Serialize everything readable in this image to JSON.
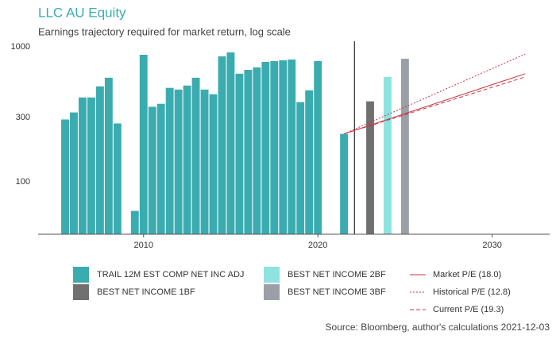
{
  "chart_data": {
    "type": "bar",
    "title": "LLC AU Equity",
    "subtitle": "Earnings trajectory required for market return, log scale",
    "source": "Source: Bloomberg, author's calculations 2021-12-03",
    "log_y": true,
    "xlim": [
      2003.95,
      2033.3
    ],
    "ylim": [
      41,
      1100
    ],
    "xticks": [
      2010,
      2020,
      2030
    ],
    "yticks": [
      100,
      300,
      1000
    ],
    "vline": 2022.1,
    "series": [
      {
        "name": "TRAIL 12M EST COMP NET INC ADJ",
        "color": "#3aacb0",
        "type": "bar",
        "x": [
          2005.5,
          2006,
          2006.5,
          2007,
          2007.5,
          2008,
          2008.5,
          2009.5,
          2010,
          2010.5,
          2011,
          2011.5,
          2012,
          2012.5,
          2013,
          2013.5,
          2014,
          2014.5,
          2015,
          2015.5,
          2016,
          2016.5,
          2017,
          2017.5,
          2018,
          2018.5,
          2019,
          2019.5,
          2020,
          2021.5
        ],
        "values": [
          290,
          327,
          422,
          422,
          510,
          591,
          271,
          61,
          874,
          360,
          379,
          497,
          483,
          517,
          591,
          483,
          446,
          851,
          910,
          633,
          676,
          705,
          774,
          785,
          796,
          806,
          390,
          477,
          785,
          227
        ]
      },
      {
        "name": "BEST NET INCOME 1BF",
        "color": "#707070",
        "type": "bar",
        "x": [
          2023
        ],
        "values": [
          395
        ]
      },
      {
        "name": "BEST NET INCOME 2BF",
        "color": "#8de3e0",
        "type": "bar",
        "x": [
          2024
        ],
        "values": [
          599
        ]
      },
      {
        "name": "BEST NET INCOME 3BF",
        "color": "#9aa0a6",
        "type": "bar",
        "x": [
          2025
        ],
        "values": [
          817
        ]
      },
      {
        "name": "Market P/E (18.0)",
        "color": "#cc3344",
        "type": "line",
        "style": "solid",
        "x": [
          2021.5,
          2031.9
        ],
        "values": [
          227,
          633
        ]
      },
      {
        "name": "Historical P/E (12.8)",
        "color": "#cc3344",
        "type": "line",
        "style": "dotted",
        "x": [
          2021.5,
          2031.9
        ],
        "values": [
          227,
          885
        ]
      },
      {
        "name": "Current P/E (19.3)",
        "color": "#cc3344",
        "type": "line",
        "style": "dashed",
        "x": [
          2021.5,
          2031.9
        ],
        "values": [
          227,
          599
        ]
      }
    ]
  }
}
